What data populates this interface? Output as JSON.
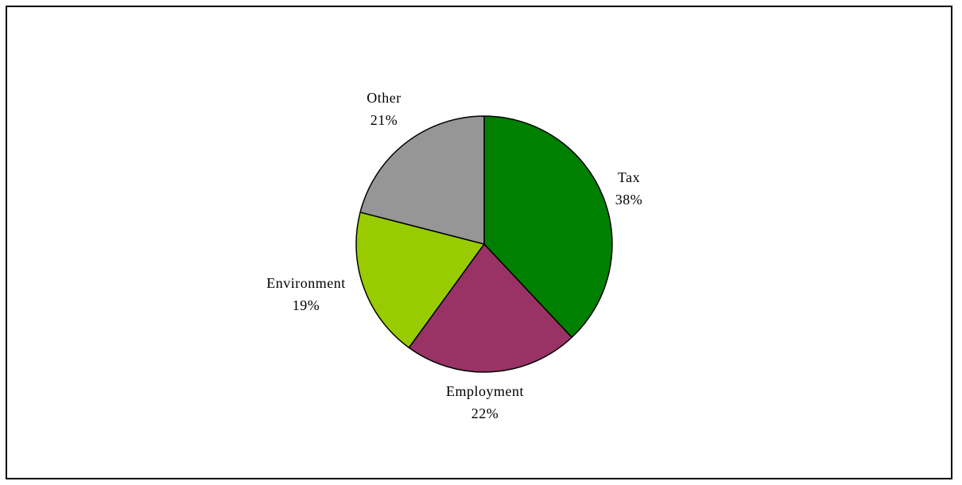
{
  "chart_data": {
    "type": "pie",
    "title": "",
    "start_angle_deg": 0,
    "direction": "clockwise",
    "slices": [
      {
        "label": "Tax",
        "value": 38,
        "value_label": "38%",
        "color": "#008000"
      },
      {
        "label": "Employment",
        "value": 22,
        "value_label": "22%",
        "color": "#993366"
      },
      {
        "label": "Environment",
        "value": 19,
        "value_label": "19%",
        "color": "#99cc00"
      },
      {
        "label": "Other",
        "value": 21,
        "value_label": "21%",
        "color": "#969696"
      }
    ],
    "legend": "none",
    "slice_border_color": "#000000"
  }
}
